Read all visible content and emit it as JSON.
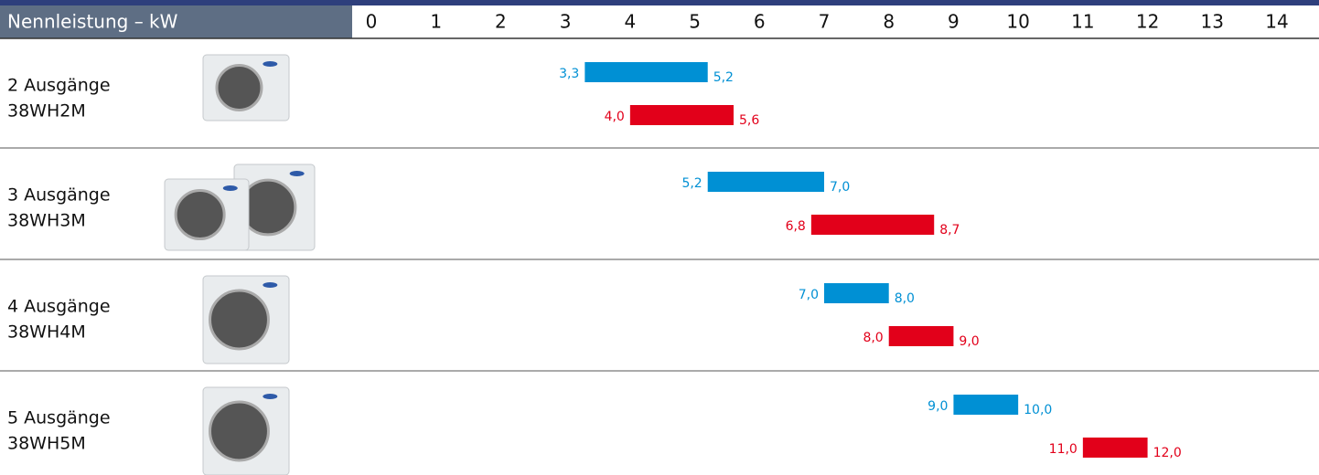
{
  "chart_data": {
    "type": "range-bar",
    "title": "Nennleistung – kW",
    "xlim": [
      0,
      14
    ],
    "xticks": [
      0,
      1,
      2,
      3,
      4,
      5,
      6,
      7,
      8,
      9,
      10,
      11,
      12,
      13,
      14
    ],
    "categories": [
      "2 Ausgänge",
      "3 Ausgänge",
      "4 Ausgänge",
      "5 Ausgänge"
    ],
    "models": [
      "38WH2M",
      "38WH3M",
      "38WH4M",
      "38WH5M"
    ],
    "series": [
      {
        "color": "#0090d4",
        "values": [
          [
            3.3,
            5.2
          ],
          [
            5.2,
            7.0
          ],
          [
            7.0,
            8.0
          ],
          [
            9.0,
            10.0
          ]
        ],
        "value_labels": [
          [
            "3,3",
            "5,2"
          ],
          [
            "5,2",
            "7,0"
          ],
          [
            "7,0",
            "8,0"
          ],
          [
            "9,0",
            "10,0"
          ]
        ]
      },
      {
        "color": "#e2001a",
        "values": [
          [
            4.0,
            5.6
          ],
          [
            6.8,
            8.7
          ],
          [
            8.0,
            9.0
          ],
          [
            11.0,
            12.0
          ]
        ],
        "value_labels": [
          [
            "4,0",
            "5,6"
          ],
          [
            "6,8",
            "8,7"
          ],
          [
            "8,0",
            "9,0"
          ],
          [
            "11,0",
            "12,0"
          ]
        ]
      }
    ]
  }
}
